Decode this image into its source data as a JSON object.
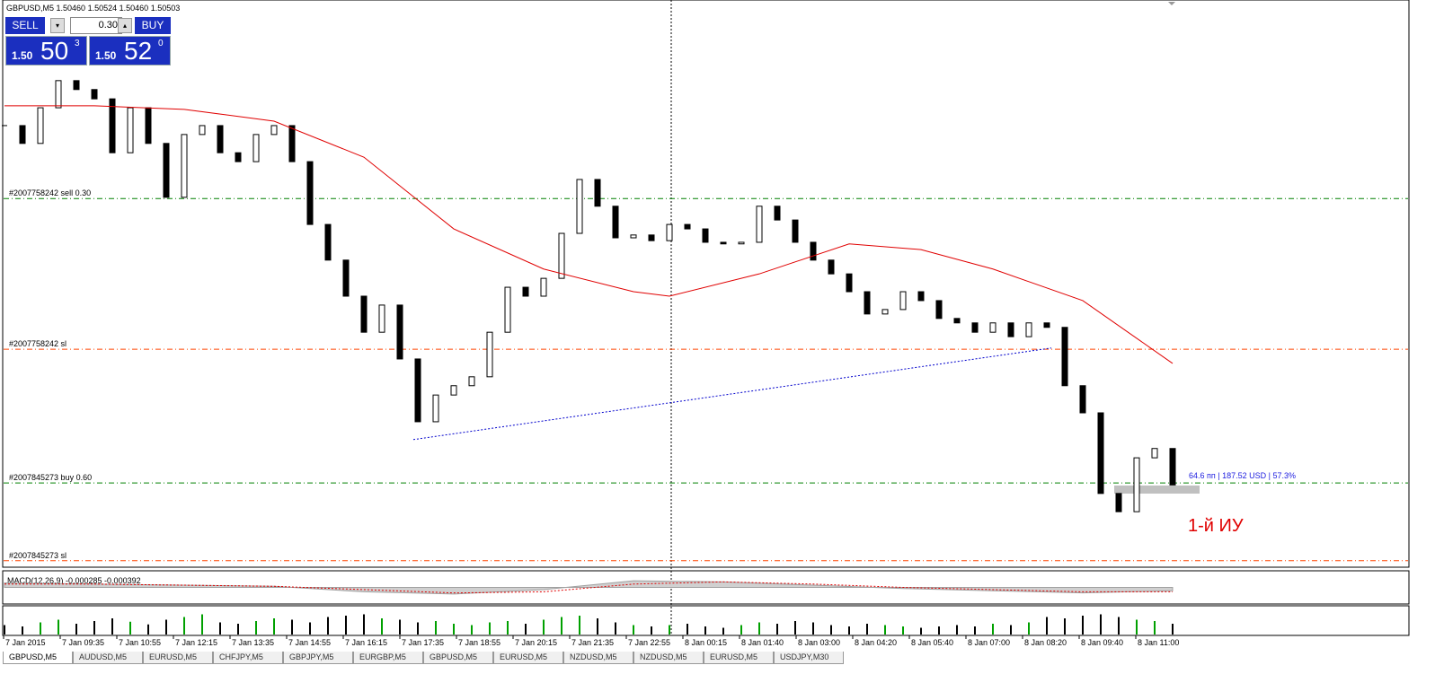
{
  "header": {
    "symbol": "GBPUSD,M5",
    "ohlc": [
      "1.50460",
      "1.50524",
      "1.50460",
      "1.50503"
    ]
  },
  "trade_panel": {
    "sell": "SELL",
    "lot": "0.30",
    "buy": "BUY",
    "sell_price": {
      "prefix": "1.50",
      "big": "50",
      "sup": "3"
    },
    "buy_price": {
      "prefix": "1.50",
      "big": "52",
      "sup": "0"
    }
  },
  "chart_data": {
    "type": "candlestick",
    "time_labels": [
      "7 Jan 2015",
      "7 Jan 09:35",
      "7 Jan 10:55",
      "7 Jan 12:15",
      "7 Jan 13:35",
      "7 Jan 14:55",
      "7 Jan 16:15",
      "7 Jan 17:35",
      "7 Jan 18:55",
      "7 Jan 20:15",
      "7 Jan 21:35",
      "7 Jan 22:55",
      "8 Jan 00:15",
      "8 Jan 01:40",
      "8 Jan 03:00",
      "8 Jan 04:20",
      "8 Jan 05:40",
      "8 Jan 07:00",
      "8 Jan 08:20",
      "8 Jan 09:40",
      "8 Jan 11:00"
    ],
    "closes": [
      1.5139,
      1.51346,
      1.51434,
      1.51501,
      1.51479,
      1.51456,
      1.51323,
      1.51434,
      1.51346,
      1.51213,
      1.51368,
      1.5139,
      1.51323,
      1.51301,
      1.51368,
      1.5139,
      1.51301,
      1.51146,
      1.51058,
      1.50969,
      1.5088,
      1.50947,
      1.50814,
      1.50659,
      1.50725,
      1.50748,
      1.5077,
      1.5088,
      1.50991,
      1.50969,
      1.51013,
      1.51124,
      1.51257,
      1.51191,
      1.51113,
      1.5112,
      1.51106,
      1.51146,
      1.51135,
      1.51102,
      1.51098,
      1.51102,
      1.51191,
      1.51157,
      1.51102,
      1.51058,
      1.51024,
      1.5098,
      1.50925,
      1.50936,
      1.5098,
      1.50958,
      1.50914,
      1.50903,
      1.5088,
      1.50903,
      1.50869,
      1.50903,
      1.50892,
      1.50748,
      1.50681,
      1.50482,
      1.50437,
      1.5057,
      1.50593,
      1.50503
    ],
    "ylim": [
      1.503,
      1.517
    ],
    "ma": {
      "color": "#e00000",
      "x": [
        0,
        5,
        10,
        15,
        20,
        25,
        30,
        35,
        37,
        42,
        47,
        51,
        55,
        60,
        65
      ],
      "values": [
        1.51439,
        1.51439,
        1.5143,
        1.51401,
        1.51312,
        1.51135,
        1.51036,
        1.5098,
        1.50969,
        1.51024,
        1.51098,
        1.51084,
        1.51036,
        1.50958,
        1.50803
      ]
    },
    "orders": [
      {
        "label": "#2007758242 sell 0.30",
        "value": 1.5121,
        "color": "#008000"
      },
      {
        "label": "#2007758242 sl",
        "value": 1.50838,
        "color": "#ff4500"
      },
      {
        "label": "#2007845273 buy 0.60",
        "value": 1.50508,
        "color": "#008000"
      },
      {
        "label": "#2007845273 sl",
        "value": 1.50316,
        "color": "#ff4500"
      }
    ],
    "trendline": {
      "x": [
        22.75,
        58.25
      ],
      "values": [
        1.50615,
        1.50841
      ],
      "color": "#0000cc"
    },
    "profit_label": "64.6 пп | 187.52 USD | 57.3%",
    "annotation": "1-й ИУ"
  },
  "macd": {
    "label": "MACD(12,26,9) -0.000285 -0.000392",
    "ylim": [
      -0.0015,
      0.0015
    ],
    "x": [
      0,
      5,
      10,
      15,
      20,
      25,
      30,
      35,
      40,
      45,
      50,
      55,
      60,
      65
    ],
    "main": [
      0.0004,
      0.0003,
      0.0002,
      0.0001,
      -0.0004,
      -0.0006,
      -0.0002,
      0.0006,
      0.0005,
      0.0002,
      -0.0001,
      -0.0003,
      -0.0005,
      -0.0003
    ],
    "signal": [
      0.0003,
      0.0003,
      0.0002,
      0.0001,
      -0.0002,
      -0.0005,
      -0.0004,
      0.0003,
      0.0005,
      0.0003,
      0.0,
      -0.0002,
      -0.0004,
      -0.0004
    ]
  },
  "volume": {
    "ylim": [
      0,
      40
    ],
    "values": [
      14,
      12,
      18,
      22,
      16,
      20,
      24,
      19,
      15,
      22,
      26,
      30,
      18,
      16,
      20,
      24,
      22,
      18,
      26,
      28,
      30,
      24,
      22,
      18,
      20,
      16,
      14,
      18,
      20,
      16,
      22,
      26,
      28,
      24,
      18,
      14,
      12,
      14,
      16,
      12,
      10,
      14,
      18,
      16,
      20,
      18,
      14,
      12,
      16,
      14,
      12,
      10,
      12,
      14,
      12,
      16,
      14,
      18,
      26,
      24,
      28,
      30,
      26,
      22,
      20,
      16
    ]
  },
  "tabs": [
    "GBPUSD,M5",
    "AUDUSD,M5",
    "EURUSD,M5",
    "CHFJPY,M5",
    "GBPJPY,M5",
    "EURGBP,M5",
    "GBPUSD,M5",
    "EURUSD,M5",
    "NZDUSD,M5",
    "NZDUSD,M5",
    "EURUSD,M5",
    "USDJPY,M30"
  ]
}
